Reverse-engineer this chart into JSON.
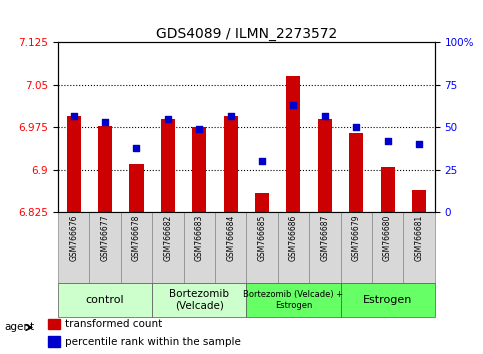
{
  "title": "GDS4089 / ILMN_2273572",
  "samples": [
    "GSM766676",
    "GSM766677",
    "GSM766678",
    "GSM766682",
    "GSM766683",
    "GSM766684",
    "GSM766685",
    "GSM766686",
    "GSM766687",
    "GSM766679",
    "GSM766680",
    "GSM766681"
  ],
  "bar_values": [
    6.995,
    6.978,
    6.91,
    6.99,
    6.975,
    6.995,
    6.86,
    7.065,
    6.99,
    6.965,
    6.905,
    6.865
  ],
  "dot_values": [
    57,
    53,
    38,
    55,
    49,
    57,
    30,
    63,
    57,
    50,
    42,
    40
  ],
  "ylim_left": [
    6.825,
    7.125
  ],
  "ylim_right": [
    0,
    100
  ],
  "yticks_left": [
    6.825,
    6.9,
    6.975,
    7.05,
    7.125
  ],
  "yticks_right": [
    0,
    25,
    50,
    75,
    100
  ],
  "ytick_labels_left": [
    "6.825",
    "6.9",
    "6.975",
    "7.05",
    "7.125"
  ],
  "ytick_labels_right": [
    "0",
    "25",
    "50",
    "75",
    "100%"
  ],
  "bar_color": "#cc0000",
  "dot_color": "#0000cc",
  "bar_baseline": 6.825,
  "groups": [
    {
      "label": "control",
      "start": 0,
      "end": 3,
      "color": "#ccffcc",
      "font_size": 8
    },
    {
      "label": "Bortezomib\n(Velcade)",
      "start": 3,
      "end": 6,
      "color": "#ccffcc",
      "font_size": 7.5
    },
    {
      "label": "Bortezomib (Velcade) +\nEstrogen",
      "start": 6,
      "end": 9,
      "color": "#66ff66",
      "font_size": 6
    },
    {
      "label": "Estrogen",
      "start": 9,
      "end": 12,
      "color": "#66ff66",
      "font_size": 8
    }
  ],
  "grid_yticks": [
    6.9,
    6.975,
    7.05
  ],
  "legend_items": [
    {
      "label": "transformed count",
      "color": "#cc0000"
    },
    {
      "label": "percentile rank within the sample",
      "color": "#0000cc"
    }
  ],
  "agent_label": "agent",
  "figsize": [
    4.83,
    3.54
  ],
  "dpi": 100
}
